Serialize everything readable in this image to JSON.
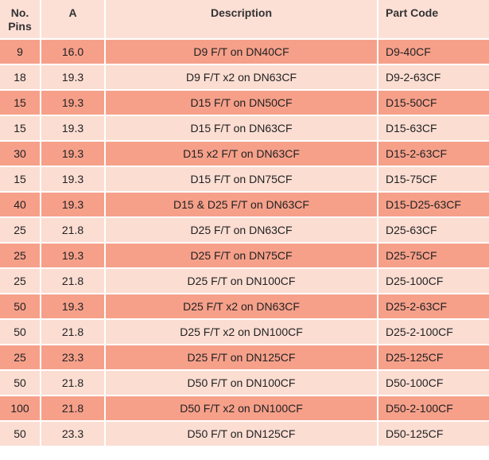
{
  "headers": {
    "pins_line1": "No.",
    "pins_line2": "Pins",
    "a": "A",
    "description": "Description",
    "part_code": "Part Code"
  },
  "colors": {
    "header_bg": "#fce0d6",
    "row_dark": "#f6a08a",
    "row_light": "#fbddd2"
  },
  "rows": [
    {
      "pins": "9",
      "a": "16.0",
      "description": "D9 F/T on DN40CF",
      "code": "D9-40CF"
    },
    {
      "pins": "18",
      "a": "19.3",
      "description": "D9 F/T x2 on DN63CF",
      "code": "D9-2-63CF"
    },
    {
      "pins": "15",
      "a": "19.3",
      "description": "D15 F/T on DN50CF",
      "code": "D15-50CF"
    },
    {
      "pins": "15",
      "a": "19.3",
      "description": "D15 F/T on DN63CF",
      "code": "D15-63CF"
    },
    {
      "pins": "30",
      "a": "19.3",
      "description": "D15 x2 F/T on DN63CF",
      "code": "D15-2-63CF"
    },
    {
      "pins": "15",
      "a": "19.3",
      "description": "D15 F/T on DN75CF",
      "code": "D15-75CF"
    },
    {
      "pins": "40",
      "a": "19.3",
      "description": "D15 & D25 F/T on DN63CF",
      "code": "D15-D25-63CF"
    },
    {
      "pins": "25",
      "a": "21.8",
      "description": "D25 F/T on DN63CF",
      "code": "D25-63CF"
    },
    {
      "pins": "25",
      "a": "19.3",
      "description": "D25 F/T on DN75CF",
      "code": "D25-75CF"
    },
    {
      "pins": "25",
      "a": "21.8",
      "description": "D25 F/T on DN100CF",
      "code": "D25-100CF"
    },
    {
      "pins": "50",
      "a": "19.3",
      "description": "D25 F/T x2 on DN63CF",
      "code": "D25-2-63CF"
    },
    {
      "pins": "50",
      "a": "21.8",
      "description": "D25 F/T x2 on DN100CF",
      "code": "D25-2-100CF"
    },
    {
      "pins": "25",
      "a": "23.3",
      "description": "D25 F/T on DN125CF",
      "code": "D25-125CF"
    },
    {
      "pins": "50",
      "a": "21.8",
      "description": "D50 F/T on DN100CF",
      "code": "D50-100CF"
    },
    {
      "pins": "100",
      "a": "21.8",
      "description": "D50 F/T x2 on DN100CF",
      "code": "D50-2-100CF"
    },
    {
      "pins": "50",
      "a": "23.3",
      "description": "D50 F/T on DN125CF",
      "code": "D50-125CF"
    }
  ]
}
